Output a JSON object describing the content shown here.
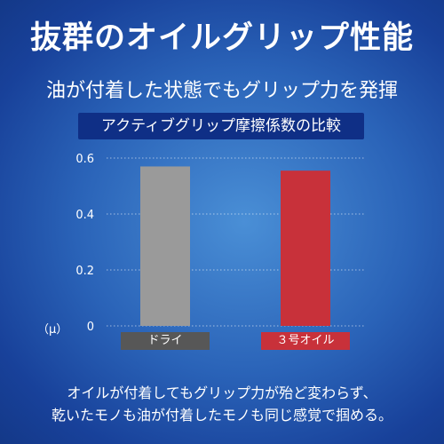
{
  "header": {
    "title": "抜群のオイルグリップ性能",
    "subtitle": "油が付着した状態でもグリップ力を発揮"
  },
  "caption": {
    "line1": "オイルが付着してもグリップ力が殆ど変わらず、",
    "line2": "乾いたモノも油が付着したモノも同じ感覚で掴める。"
  },
  "chart_data": {
    "type": "bar",
    "title": "アクティブグリップ摩擦係数の比較",
    "unit": "（μ）",
    "categories": [
      "ドライ",
      "３号オイル"
    ],
    "values": [
      0.57,
      0.555
    ],
    "ylim": [
      0,
      0.6
    ],
    "yticks": [
      0,
      0.2,
      0.4,
      0.6
    ],
    "ytick_labels": [
      "0",
      "0.2",
      "0.4",
      "0.6"
    ],
    "grid": true,
    "colors": [
      "#9a9a9a",
      "#c8313a"
    ],
    "label_colors": [
      "#575757",
      "#c8313a"
    ]
  }
}
